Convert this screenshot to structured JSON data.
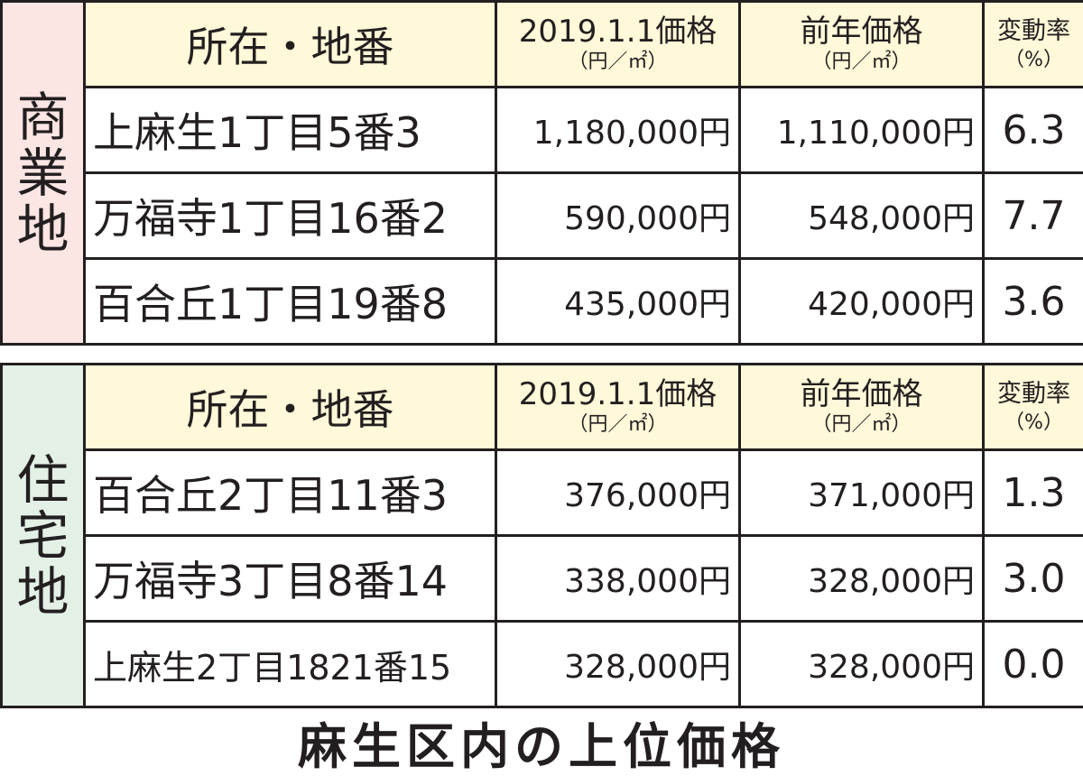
{
  "headers": {
    "location": "所在・地番",
    "price_main": "2019.1.1価格",
    "price_sub": "（円／㎡）",
    "prev_main": "前年価格",
    "prev_sub": "（円／㎡）",
    "rate_main": "変動率",
    "rate_sub": "（%）"
  },
  "commercial": {
    "category_chars": [
      "商",
      "業",
      "地"
    ],
    "rows": [
      {
        "location": "上麻生1丁目5番3",
        "price": "1,180,000円",
        "prev": "1,110,000円",
        "rate": "6.3"
      },
      {
        "location": "万福寺1丁目16番2",
        "price": "590,000円",
        "prev": "548,000円",
        "rate": "7.7"
      },
      {
        "location": "百合丘1丁目19番8",
        "price": "435,000円",
        "prev": "420,000円",
        "rate": "3.6"
      }
    ]
  },
  "residential": {
    "category_chars": [
      "住",
      "宅",
      "地"
    ],
    "rows": [
      {
        "location": "百合丘2丁目11番3",
        "price": "376,000円",
        "prev": "371,000円",
        "rate": "1.3"
      },
      {
        "location": "万福寺3丁目8番14",
        "price": "338,000円",
        "prev": "328,000円",
        "rate": "3.0"
      },
      {
        "location": "上麻生2丁目1821番15",
        "price": "328,000円",
        "prev": "328,000円",
        "rate": "0.0"
      }
    ]
  },
  "caption": "麻生区内の上位価格"
}
